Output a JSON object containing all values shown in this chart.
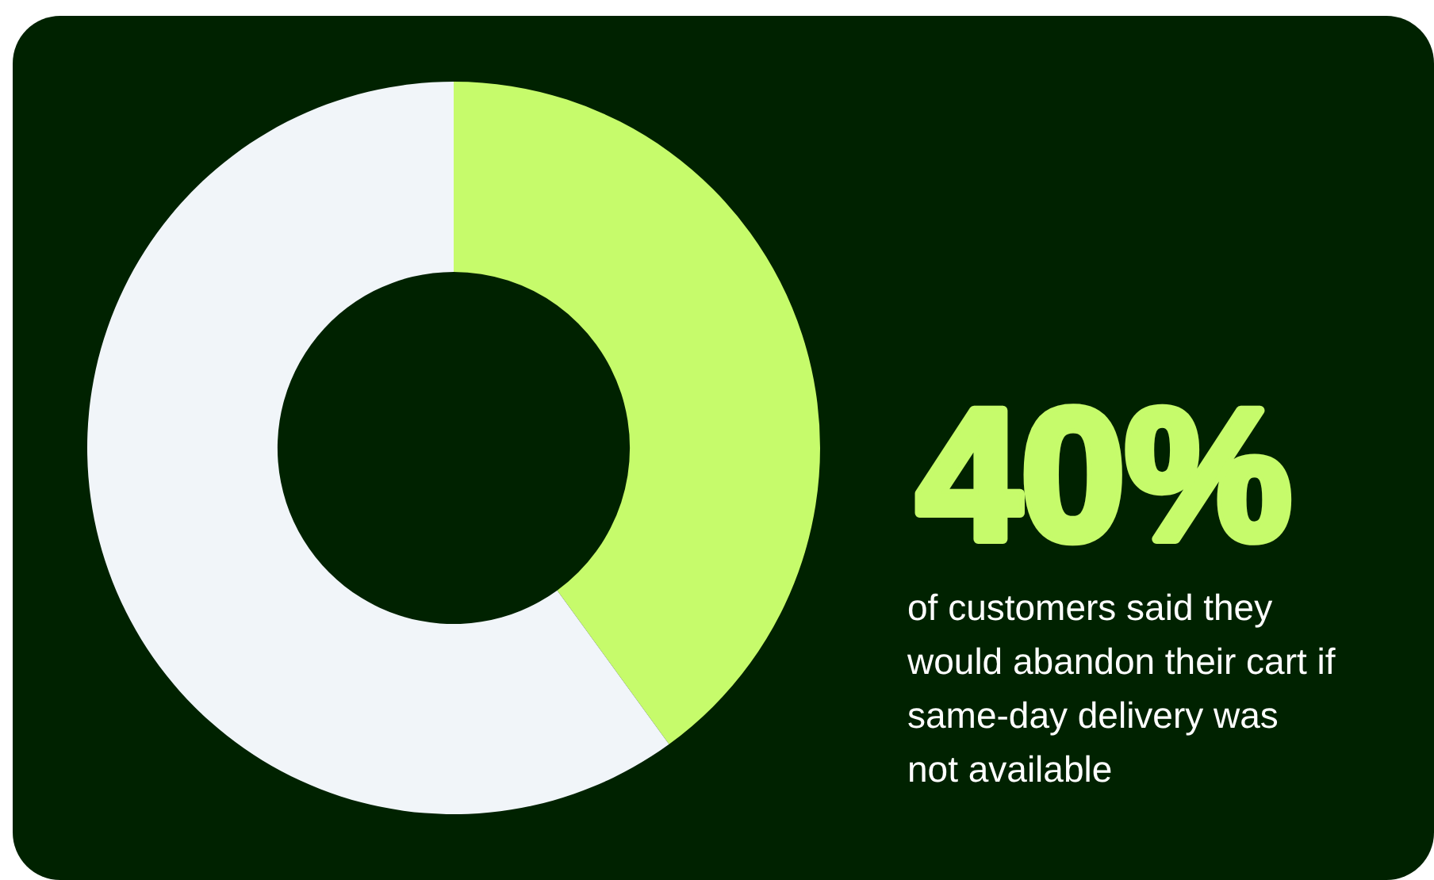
{
  "chart_data": {
    "type": "donut",
    "categories": [
      null,
      null
    ],
    "values": [
      40,
      60
    ],
    "colors": [
      "#c6fb6b",
      "#f1f5f9"
    ],
    "value_labels": [
      "40%",
      null
    ],
    "annotations": [
      "of customers said they would abandon their cart if same-day delivery was not available"
    ]
  }
}
